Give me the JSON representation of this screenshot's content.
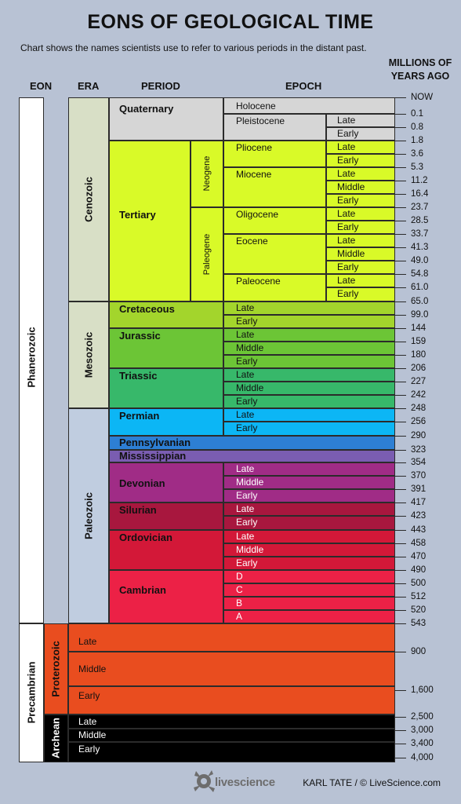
{
  "title": "EONS OF GEOLOGICAL TIME",
  "subtitle": "Chart shows the names scientists use to refer to various periods in the distant past.",
  "headers": {
    "eon": "EON",
    "era": "ERA",
    "period": "PERIOD",
    "epoch": "EPOCH",
    "mya_line1": "MILLIONS OF",
    "mya_line2": "YEARS AGO"
  },
  "eons": [
    {
      "name": "Phanerozoic"
    },
    {
      "name": "Precambrian"
    }
  ],
  "eras": [
    {
      "name": "Cenozoic"
    },
    {
      "name": "Mesozoic"
    },
    {
      "name": "Paleozoic"
    },
    {
      "name": "Proterozoic"
    },
    {
      "name": "Archean"
    }
  ],
  "subperiods": [
    {
      "name": "Neogene"
    },
    {
      "name": "Paleogene"
    }
  ],
  "periods": [
    {
      "name": "Quaternary"
    },
    {
      "name": "Tertiary"
    },
    {
      "name": "Cretaceous"
    },
    {
      "name": "Jurassic"
    },
    {
      "name": "Triassic"
    },
    {
      "name": "Permian"
    },
    {
      "name": "Pennsylvanian"
    },
    {
      "name": "Mississippian"
    },
    {
      "name": "Devonian"
    },
    {
      "name": "Silurian"
    },
    {
      "name": "Ordovician"
    },
    {
      "name": "Cambrian"
    }
  ],
  "epochs": [
    {
      "name": "Holocene"
    },
    {
      "name": "Pleistocene"
    },
    {
      "name": "Pliocene"
    },
    {
      "name": "Miocene"
    },
    {
      "name": "Oligocene"
    },
    {
      "name": "Eocene"
    },
    {
      "name": "Paleocene"
    }
  ],
  "subdivisions": {
    "late": "Late",
    "middle": "Middle",
    "early": "Early",
    "a": "A",
    "b": "B",
    "c": "C",
    "d": "D"
  },
  "mya_labels": [
    "NOW",
    "0.1",
    "0.8",
    "1.8",
    "3.6",
    "5.3",
    "11.2",
    "16.4",
    "23.7",
    "28.5",
    "33.7",
    "41.3",
    "49.0",
    "54.8",
    "61.0",
    "65.0",
    "99.0",
    "144",
    "159",
    "180",
    "206",
    "227",
    "242",
    "248",
    "256",
    "290",
    "323",
    "354",
    "370",
    "391",
    "417",
    "423",
    "443",
    "458",
    "470",
    "490",
    "500",
    "512",
    "520",
    "543",
    "900",
    "1,600",
    "2,500",
    "3,000",
    "3,400",
    "4,000"
  ],
  "credit": "KARL TATE / © LiveScience.com",
  "logo_text": "livescience",
  "colors": {
    "background": "#b8c2d4",
    "quaternary": "#d6d6d6",
    "tertiary": "#d9fa28",
    "cretaceous": "#a3d52c",
    "jurassic": "#6cc536",
    "triassic": "#37b86a",
    "permian": "#0cb6f5",
    "pennsylvanian": "#2d7fd4",
    "mississippian": "#7a5db1",
    "devonian": "#a02c86",
    "silurian": "#a8173e",
    "ordovician": "#d31838",
    "cambrian": "#ec2146",
    "proterozoic": "#e94d1f",
    "archean": "#000000",
    "cenozoic_era": "#d8dfc6",
    "mesozoic_era": "#d8dfc6",
    "paleozoic_era": "#c0cde0",
    "phanerozoic_eon": "#ffffff",
    "precambrian_eon": "#ffffff"
  }
}
